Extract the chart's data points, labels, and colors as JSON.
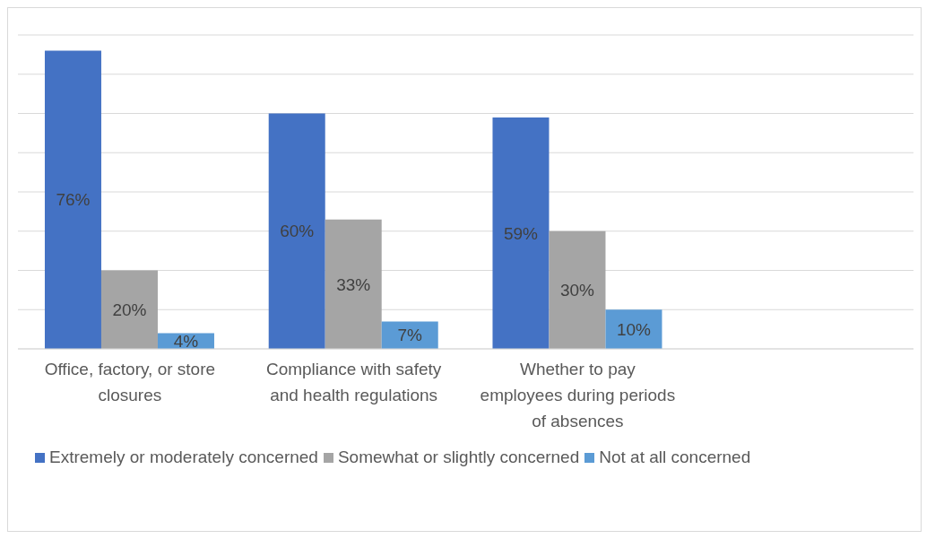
{
  "chart_data": {
    "type": "bar",
    "categories": [
      "Office, factory, or store closures",
      "Compliance with safety and health regulations",
      "Whether to pay employees during periods of absences",
      null
    ],
    "series": [
      {
        "name": "Extremely or moderately concerned",
        "color": "#4472c4",
        "values": [
          76,
          60,
          59,
          null
        ],
        "value_labels": [
          "76%",
          "60%",
          "59%",
          null
        ]
      },
      {
        "name": "Somewhat or slightly concerned",
        "color": "#a5a5a5",
        "values": [
          20,
          33,
          30,
          null
        ],
        "value_labels": [
          "20%",
          "33%",
          "30%",
          null
        ]
      },
      {
        "name": "Not at all concerned",
        "color": "#5b9bd5",
        "values": [
          4,
          7,
          10,
          null
        ],
        "value_labels": [
          "4%",
          "7%",
          "10%",
          null
        ]
      }
    ],
    "ylim": [
      0,
      80
    ],
    "yticks": [
      {
        "value": 0,
        "label": null
      },
      {
        "value": 10,
        "label": null
      },
      {
        "value": 20,
        "label": null
      },
      {
        "value": 30,
        "label": null
      },
      {
        "value": 40,
        "label": null
      },
      {
        "value": 50,
        "label": null
      },
      {
        "value": 60,
        "label": null
      },
      {
        "value": 70,
        "label": null
      },
      {
        "value": 80,
        "label": null
      }
    ],
    "tick_labels": "x",
    "grid": "y",
    "legend": "bottom"
  }
}
